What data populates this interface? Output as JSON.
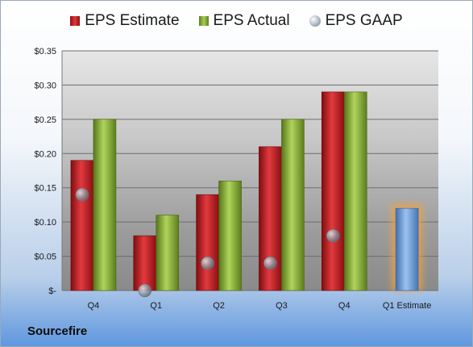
{
  "legend": {
    "estimate": "EPS Estimate",
    "actual": "EPS Actual",
    "gaap": "EPS GAAP"
  },
  "company": "Sourcefire",
  "y_tick_labels": [
    "$-",
    "$0.05",
    "$0.10",
    "$0.15",
    "$0.20",
    "$0.25",
    "$0.30",
    "$0.35"
  ],
  "colors": {
    "estimate": "#c8282c",
    "actual": "#8db43d",
    "gaap": "#9aa3ad",
    "forecast": "#6f9fd6",
    "forecast_glow": "#f5a23a"
  },
  "chart_data": {
    "type": "bar",
    "categories": [
      "Q4",
      "Q1",
      "Q2",
      "Q3",
      "Q4",
      "Q1 Estimate"
    ],
    "series": [
      {
        "name": "EPS Estimate",
        "values": [
          0.19,
          0.08,
          0.14,
          0.21,
          0.29,
          null
        ]
      },
      {
        "name": "EPS Actual",
        "values": [
          0.25,
          0.11,
          0.16,
          0.25,
          0.29,
          null
        ]
      },
      {
        "name": "EPS GAAP",
        "values": [
          0.14,
          0.0,
          0.04,
          0.04,
          0.08,
          null
        ]
      }
    ],
    "forecast": {
      "category": "Q1 Estimate",
      "value": 0.12
    },
    "ylim": [
      0,
      0.35
    ],
    "yticks": [
      0,
      0.05,
      0.1,
      0.15,
      0.2,
      0.25,
      0.3,
      0.35
    ],
    "grid": true,
    "legend_position": "top"
  }
}
